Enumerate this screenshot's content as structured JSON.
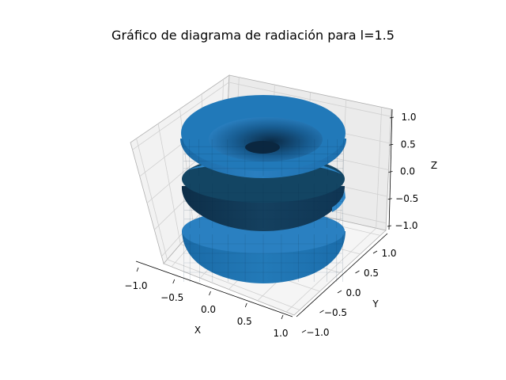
{
  "chart_data": {
    "type": "surface3d",
    "title": "Gráfico de diagrama de radiación para l=1.5",
    "xlabel": "X",
    "ylabel": "Y",
    "zlabel": "Z",
    "xlim": [
      -1.0,
      1.0
    ],
    "ylim": [
      -1.0,
      1.0
    ],
    "zlim": [
      -1.0,
      1.0
    ],
    "x_ticks": [
      "−1.0",
      "−0.5",
      "0.0",
      "0.5",
      "1.0"
    ],
    "y_ticks": [
      "−1.0",
      "−0.5",
      "0.0",
      "0.5",
      "1.0"
    ],
    "z_ticks": [
      "−1.0",
      "−0.5",
      "0.0",
      "0.5",
      "1.0"
    ],
    "grid": true,
    "surface": {
      "color": "#1f77b4",
      "lobes": [
        {
          "z_center": 0.62,
          "outer_radius": 0.62,
          "half_height": 0.3
        },
        {
          "z_center": 0.0,
          "outer_radius": 0.62,
          "half_height": 0.24
        },
        {
          "z_center": -0.62,
          "outer_radius": 0.62,
          "half_height": 0.3
        }
      ]
    }
  }
}
